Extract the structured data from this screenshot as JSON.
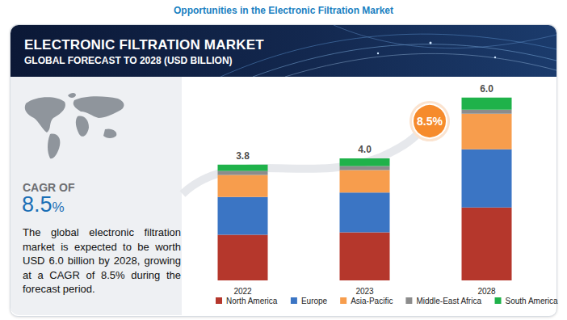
{
  "page": {
    "header": "Opportunities in the Electronic Filtration Market",
    "cagr_label": "CAGR OF",
    "cagr": "8.5%",
    "description": "The global electronic filtration market is expected to be worth USD 6.0 billion by 2028, growing at a CAGR of 8.5% during the forecast period."
  },
  "chart_data": {
    "type": "bar",
    "title": "ELECTRONIC FILTRATION MARKET",
    "subtitle": "GLOBAL FORECAST TO 2028 (USD BILLION)",
    "categories": [
      "2022",
      "2023",
      "2028"
    ],
    "series": [
      {
        "name": "North America",
        "color": "#b5372c",
        "values": [
          1.5,
          1.58,
          2.39
        ]
      },
      {
        "name": "Europe",
        "color": "#3b75c4",
        "values": [
          1.24,
          1.3,
          1.91
        ]
      },
      {
        "name": "Asia-Pacific",
        "color": "#f79d4d",
        "values": [
          0.72,
          0.74,
          1.17
        ]
      },
      {
        "name": "Middle-East Africa",
        "color": "#8c8c8c",
        "values": [
          0.13,
          0.13,
          0.13
        ]
      },
      {
        "name": "South America",
        "color": "#1fb24a",
        "values": [
          0.21,
          0.25,
          0.4
        ]
      }
    ],
    "totals": [
      3.8,
      4.0,
      6.0
    ],
    "total_labels": [
      "3.8",
      "4.0",
      "6.0"
    ],
    "annotations": [
      "8.5%"
    ],
    "ylim": [
      0,
      6.6
    ],
    "stacked": true,
    "tick_labels": "x",
    "legend": "bottom"
  }
}
